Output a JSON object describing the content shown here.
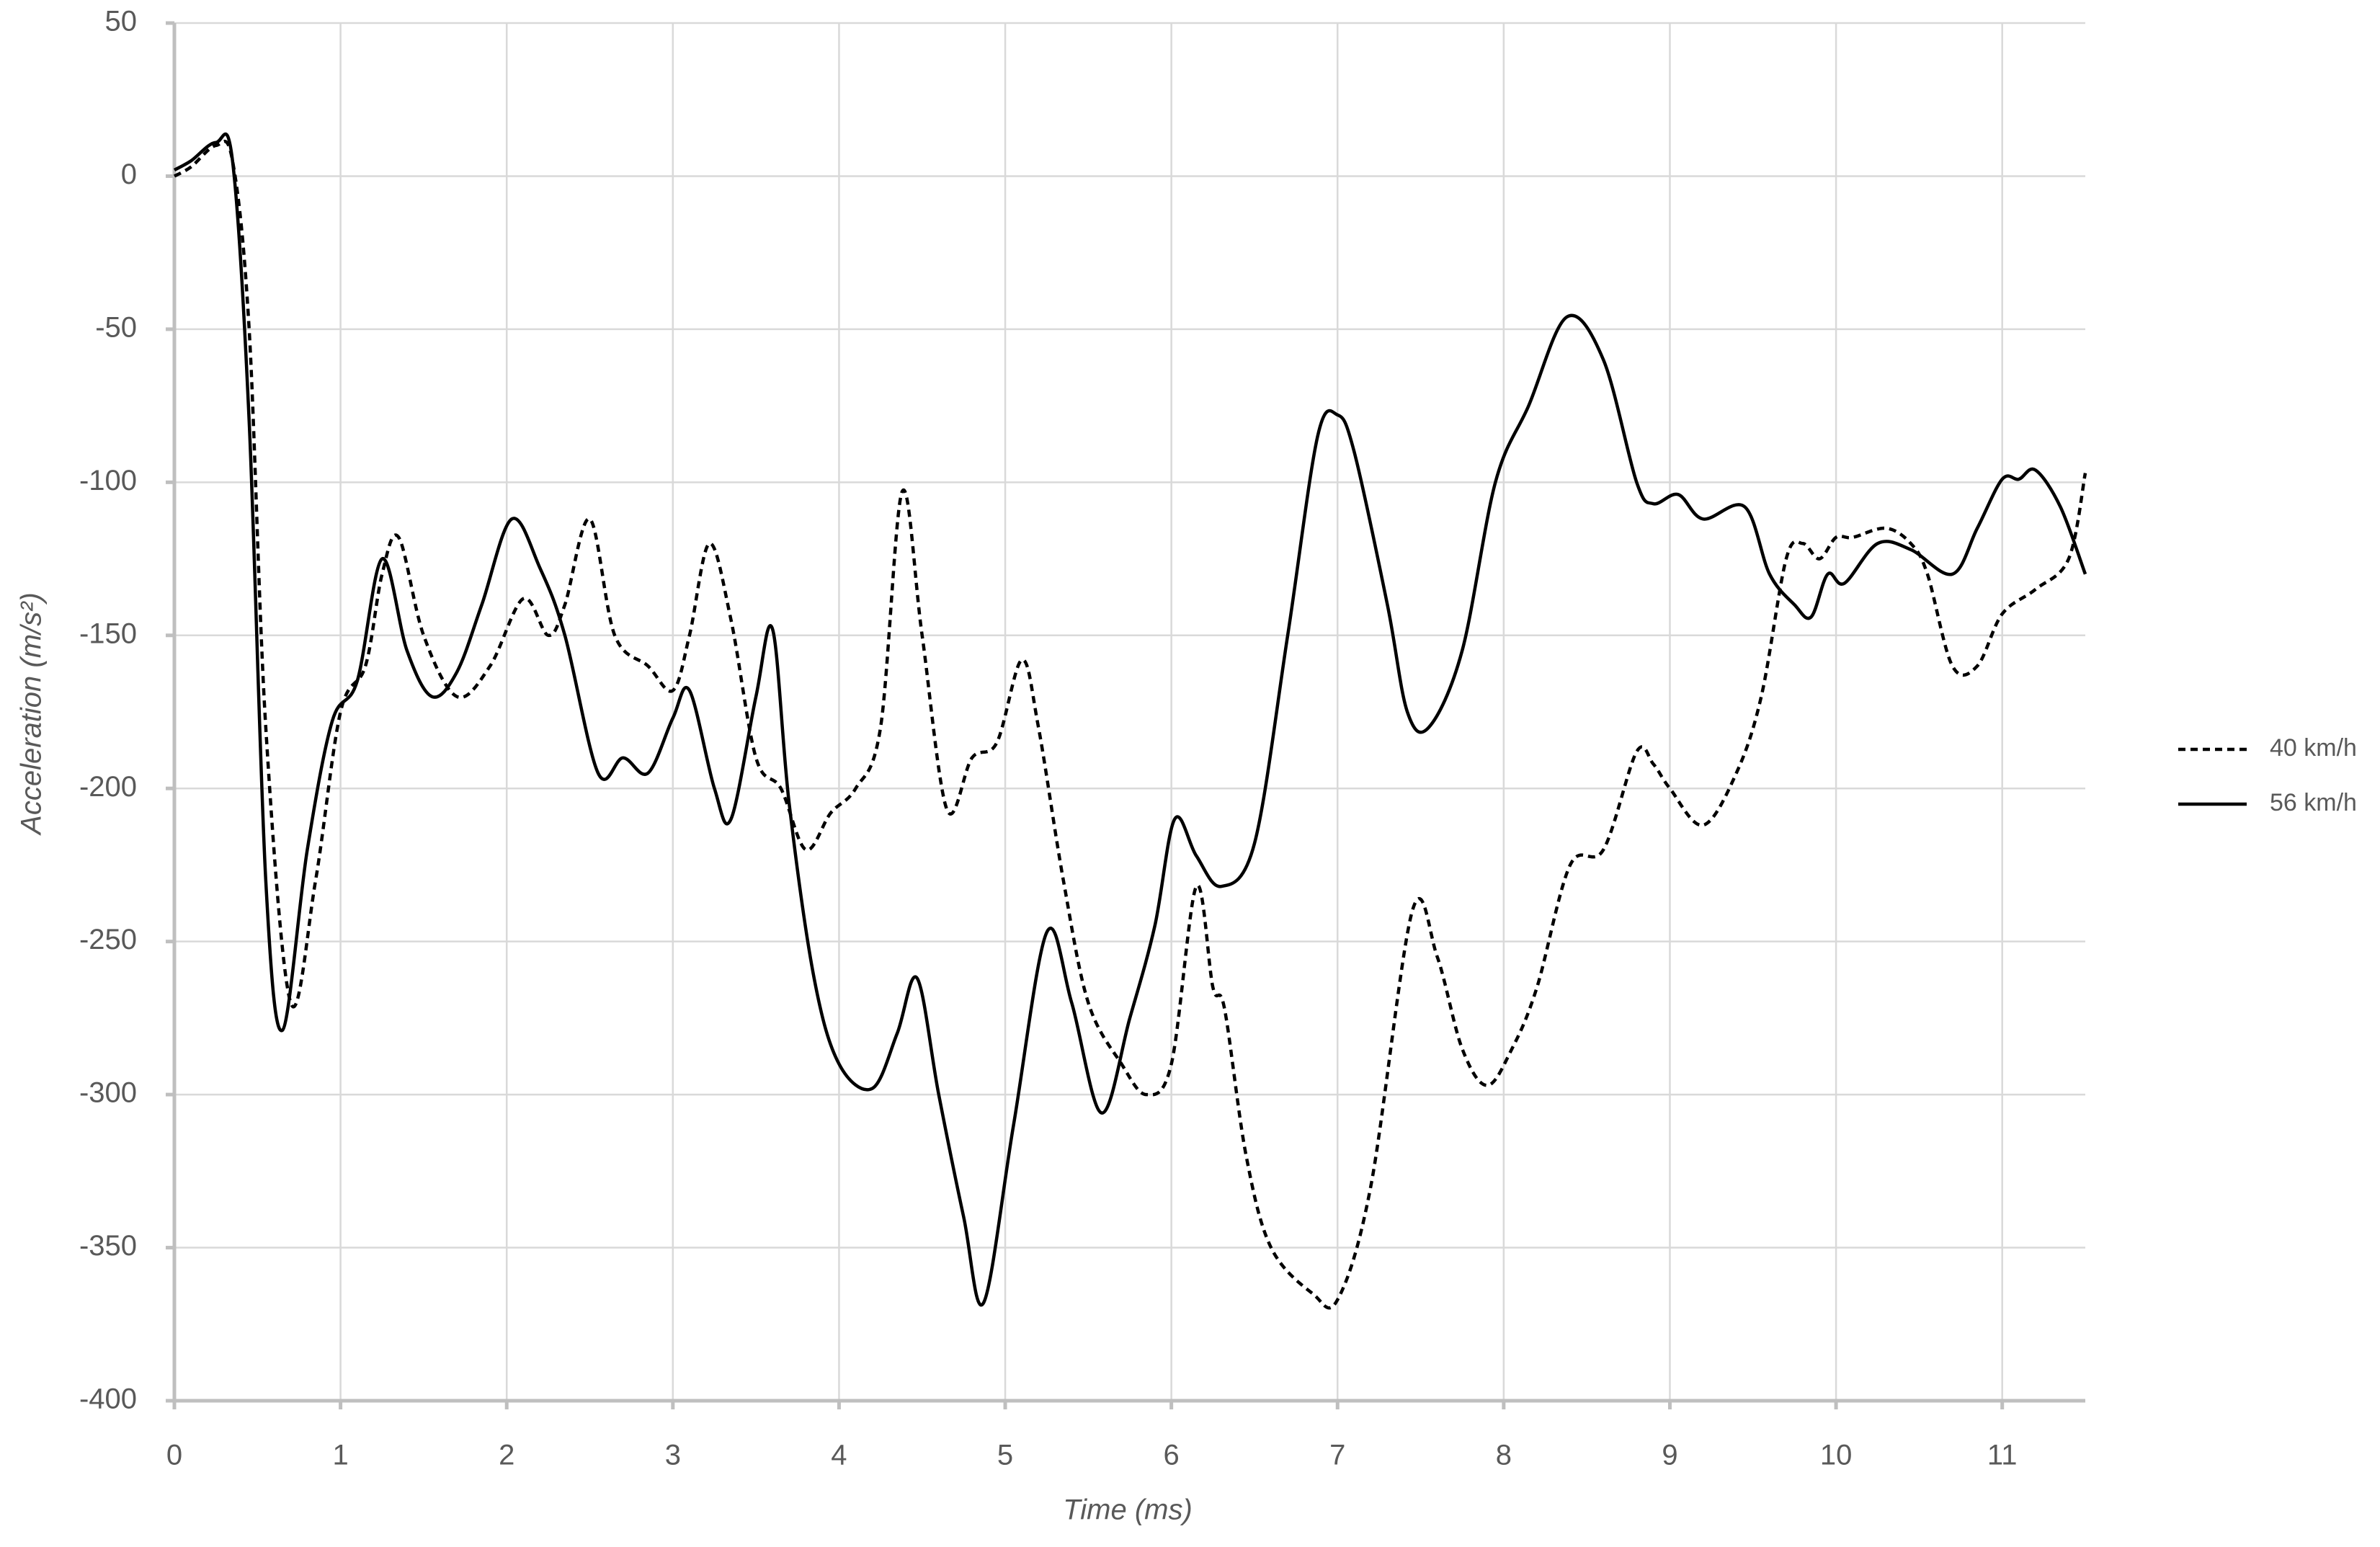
{
  "chart_data": {
    "type": "line",
    "x_label": "Time (ms)",
    "y_label": "Acceleration (m/s²)",
    "xlim": [
      0,
      11.5
    ],
    "xticks": [
      0,
      1,
      2,
      3,
      4,
      5,
      6,
      7,
      8,
      9,
      10,
      11
    ],
    "ylim": [
      -400,
      50
    ],
    "yticks": [
      -400,
      -350,
      -300,
      -250,
      -200,
      -150,
      -100,
      -50,
      0,
      50
    ],
    "grid": true,
    "legend": "right",
    "series": [
      {
        "name": "40 km/h",
        "color": "#000000",
        "dash": "dashed",
        "x": [
          0,
          0.1,
          0.25,
          0.35,
          0.45,
          0.55,
          0.7,
          0.85,
          1.0,
          1.15,
          1.25,
          1.35,
          1.5,
          1.7,
          1.9,
          2.1,
          2.25,
          2.35,
          2.5,
          2.65,
          2.85,
          3.0,
          3.1,
          3.22,
          3.35,
          3.5,
          3.65,
          3.8,
          3.95,
          4.1,
          4.25,
          4.38,
          4.5,
          4.65,
          4.8,
          4.95,
          5.1,
          5.2,
          5.35,
          5.5,
          5.7,
          5.85,
          6.0,
          6.15,
          6.25,
          6.32,
          6.45,
          6.6,
          6.85,
          7.0,
          7.2,
          7.45,
          7.6,
          7.75,
          7.9,
          8.05,
          8.2,
          8.4,
          8.6,
          8.8,
          8.9,
          9.0,
          9.2,
          9.4,
          9.55,
          9.7,
          9.8,
          9.9,
          10.0,
          10.1,
          10.3,
          10.45,
          10.55,
          10.7,
          10.85,
          11.0,
          11.2,
          11.4,
          11.5
        ],
        "values": [
          0,
          3,
          10,
          5,
          -50,
          -180,
          -270,
          -230,
          -175,
          -160,
          -130,
          -118,
          -150,
          -170,
          -160,
          -138,
          -150,
          -140,
          -112,
          -150,
          -160,
          -168,
          -150,
          -120,
          -145,
          -190,
          -200,
          -220,
          -208,
          -200,
          -180,
          -103,
          -150,
          -207,
          -190,
          -185,
          -158,
          -180,
          -230,
          -270,
          -290,
          -300,
          -290,
          -232,
          -265,
          -272,
          -320,
          -350,
          -365,
          -367,
          -330,
          -240,
          -255,
          -285,
          -297,
          -285,
          -265,
          -225,
          -220,
          -188,
          -192,
          -200,
          -212,
          -195,
          -170,
          -125,
          -120,
          -125,
          -118,
          -118,
          -115,
          -120,
          -130,
          -160,
          -160,
          -143,
          -135,
          -125,
          -97
        ]
      },
      {
        "name": "56 km/h",
        "color": "#000000",
        "dash": "solid",
        "x": [
          0,
          0.1,
          0.25,
          0.35,
          0.45,
          0.55,
          0.65,
          0.8,
          0.95,
          1.1,
          1.25,
          1.4,
          1.55,
          1.7,
          1.85,
          2.03,
          2.2,
          2.35,
          2.55,
          2.7,
          2.85,
          3.0,
          3.1,
          3.25,
          3.35,
          3.5,
          3.6,
          3.7,
          3.85,
          4.0,
          4.2,
          4.35,
          4.47,
          4.6,
          4.75,
          4.87,
          5.05,
          5.25,
          5.4,
          5.58,
          5.75,
          5.9,
          6.02,
          6.15,
          6.3,
          6.5,
          6.7,
          6.88,
          7.0,
          7.1,
          7.3,
          7.42,
          7.55,
          7.75,
          7.95,
          8.15,
          8.38,
          8.6,
          8.8,
          8.9,
          9.05,
          9.2,
          9.45,
          9.6,
          9.75,
          9.85,
          9.95,
          10.05,
          10.25,
          10.45,
          10.7,
          10.85,
          11.0,
          11.1,
          11.2,
          11.35,
          11.5
        ],
        "values": [
          2,
          5,
          11,
          5,
          -80,
          -230,
          -279,
          -220,
          -178,
          -165,
          -125,
          -155,
          -170,
          -162,
          -140,
          -112,
          -128,
          -150,
          -195,
          -190,
          -195,
          -177,
          -168,
          -200,
          -210,
          -170,
          -148,
          -205,
          -262,
          -290,
          -298,
          -280,
          -262,
          -300,
          -340,
          -368,
          -310,
          -247,
          -270,
          -306,
          -275,
          -245,
          -210,
          -222,
          -232,
          -218,
          -150,
          -85,
          -78,
          -90,
          -140,
          -175,
          -180,
          -155,
          -100,
          -75,
          -46,
          -60,
          -100,
          -107,
          -104,
          -112,
          -108,
          -130,
          -140,
          -144,
          -130,
          -133,
          -120,
          -122,
          -130,
          -115,
          -99,
          -99,
          -96,
          -108,
          -130
        ]
      }
    ]
  }
}
